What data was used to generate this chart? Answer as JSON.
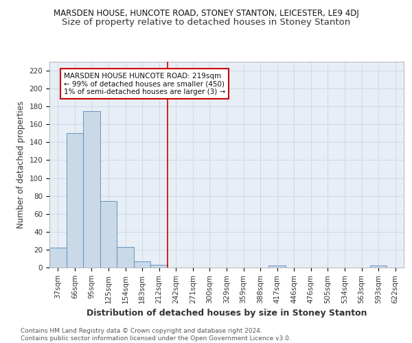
{
  "title1": "MARSDEN HOUSE, HUNCOTE ROAD, STONEY STANTON, LEICESTER, LE9 4DJ",
  "title2": "Size of property relative to detached houses in Stoney Stanton",
  "xlabel": "Distribution of detached houses by size in Stoney Stanton",
  "ylabel": "Number of detached properties",
  "bin_labels": [
    "37sqm",
    "66sqm",
    "95sqm",
    "125sqm",
    "154sqm",
    "183sqm",
    "212sqm",
    "242sqm",
    "271sqm",
    "300sqm",
    "329sqm",
    "359sqm",
    "388sqm",
    "417sqm",
    "446sqm",
    "476sqm",
    "505sqm",
    "534sqm",
    "563sqm",
    "593sqm",
    "622sqm"
  ],
  "bar_heights": [
    22,
    150,
    175,
    74,
    23,
    7,
    3,
    0,
    0,
    0,
    0,
    0,
    0,
    2,
    0,
    0,
    0,
    0,
    0,
    2,
    0
  ],
  "bar_color": "#c9d9e8",
  "bar_edge_color": "#5588bb",
  "grid_color": "#cdd8e8",
  "background_color": "#e8eef5",
  "vline_x": 6.5,
  "vline_color": "#cc0000",
  "annotation_text": "MARSDEN HOUSE HUNCOTE ROAD: 219sqm\n← 99% of detached houses are smaller (450)\n1% of semi-detached houses are larger (3) →",
  "annotation_box_color": "#ffffff",
  "annotation_box_edge": "#cc0000",
  "yticks": [
    0,
    20,
    40,
    60,
    80,
    100,
    120,
    140,
    160,
    180,
    200,
    220
  ],
  "ylim": [
    0,
    230
  ],
  "footer": "Contains HM Land Registry data © Crown copyright and database right 2024.\nContains public sector information licensed under the Open Government Licence v3.0.",
  "title1_fontsize": 8.5,
  "title2_fontsize": 9.5,
  "xlabel_fontsize": 9,
  "ylabel_fontsize": 8.5,
  "tick_fontsize": 7.5,
  "annotation_fontsize": 7.5,
  "footer_fontsize": 6.5
}
